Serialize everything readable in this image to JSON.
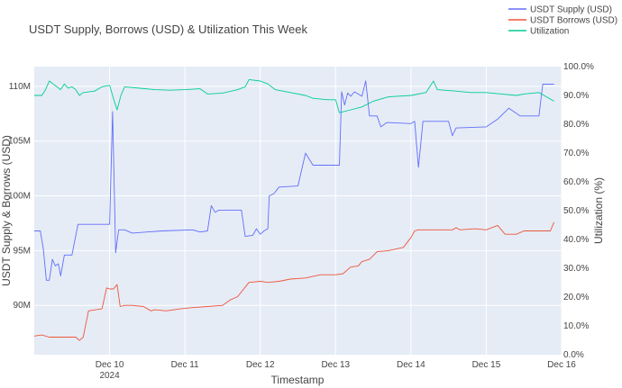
{
  "chart_data": {
    "type": "line",
    "title": "USDT Supply, Borrows (USD) & Utilization This Week",
    "xlabel": "Timestamp",
    "ylabel": "USDT Supply & Borrows (USD)",
    "y2label": "Utilization (%)",
    "x_ticks": [
      {
        "value": 1.0,
        "label": "Dec 10",
        "sublabel": "2024"
      },
      {
        "value": 2.0,
        "label": "Dec 11",
        "sublabel": ""
      },
      {
        "value": 3.0,
        "label": "Dec 12",
        "sublabel": ""
      },
      {
        "value": 4.0,
        "label": "Dec 13",
        "sublabel": ""
      },
      {
        "value": 5.0,
        "label": "Dec 14",
        "sublabel": ""
      },
      {
        "value": 6.0,
        "label": "Dec 15",
        "sublabel": ""
      },
      {
        "value": 7.0,
        "label": "Dec 16",
        "sublabel": ""
      }
    ],
    "xlim": [
      0.0,
      7.0
    ],
    "ylim": [
      85500000,
      111800000
    ],
    "y_ticks": [
      {
        "value": 90000000,
        "label": "90M"
      },
      {
        "value": 95000000,
        "label": "95M"
      },
      {
        "value": 100000000,
        "label": "100M"
      },
      {
        "value": 105000000,
        "label": "105M"
      },
      {
        "value": 110000000,
        "label": "110M"
      }
    ],
    "y2lim": [
      0,
      100
    ],
    "y2_ticks": [
      {
        "value": 0,
        "label": "0.0%"
      },
      {
        "value": 10,
        "label": "10.0%"
      },
      {
        "value": 20,
        "label": "20.0%"
      },
      {
        "value": 30,
        "label": "30.0%"
      },
      {
        "value": 40,
        "label": "40.0%"
      },
      {
        "value": 50,
        "label": "50.0%"
      },
      {
        "value": 60,
        "label": "60.0%"
      },
      {
        "value": 70,
        "label": "70.0%"
      },
      {
        "value": 80,
        "label": "80.0%"
      },
      {
        "value": 90,
        "label": "90.0%"
      },
      {
        "value": 100,
        "label": "100.0%"
      }
    ],
    "grid": true,
    "legend_position": "top-right",
    "series": [
      {
        "name": "USDT Supply (USD)",
        "color": "#636efa",
        "axis": "y",
        "points": [
          [
            0.0,
            96.8
          ],
          [
            0.08,
            96.8
          ],
          [
            0.12,
            95.2
          ],
          [
            0.16,
            92.3
          ],
          [
            0.2,
            92.3
          ],
          [
            0.24,
            94.2
          ],
          [
            0.28,
            93.6
          ],
          [
            0.32,
            93.8
          ],
          [
            0.35,
            92.7
          ],
          [
            0.4,
            94.6
          ],
          [
            0.5,
            94.6
          ],
          [
            0.58,
            97.4
          ],
          [
            1.0,
            97.4
          ],
          [
            1.04,
            107.7
          ],
          [
            1.08,
            94.8
          ],
          [
            1.12,
            96.9
          ],
          [
            1.2,
            96.9
          ],
          [
            1.3,
            96.6
          ],
          [
            1.5,
            96.7
          ],
          [
            1.7,
            96.8
          ],
          [
            2.1,
            96.9
          ],
          [
            2.2,
            96.7
          ],
          [
            2.3,
            96.8
          ],
          [
            2.35,
            99.1
          ],
          [
            2.4,
            98.5
          ],
          [
            2.45,
            98.7
          ],
          [
            2.75,
            98.7
          ],
          [
            2.8,
            96.3
          ],
          [
            2.9,
            96.4
          ],
          [
            2.95,
            97.0
          ],
          [
            3.0,
            96.5
          ],
          [
            3.05,
            96.8
          ],
          [
            3.1,
            97.0
          ],
          [
            3.12,
            100.0
          ],
          [
            3.18,
            100.2
          ],
          [
            3.25,
            100.8
          ],
          [
            3.5,
            100.9
          ],
          [
            3.6,
            103.9
          ],
          [
            3.7,
            102.8
          ],
          [
            4.05,
            102.8
          ],
          [
            4.08,
            109.5
          ],
          [
            4.12,
            108.3
          ],
          [
            4.16,
            109.4
          ],
          [
            4.2,
            109.1
          ],
          [
            4.25,
            109.5
          ],
          [
            4.35,
            109.1
          ],
          [
            4.4,
            110.5
          ],
          [
            4.45,
            107.3
          ],
          [
            4.55,
            107.3
          ],
          [
            4.6,
            106.3
          ],
          [
            4.68,
            106.7
          ],
          [
            5.0,
            106.6
          ],
          [
            5.05,
            106.8
          ],
          [
            5.1,
            102.6
          ],
          [
            5.16,
            106.8
          ],
          [
            5.5,
            106.8
          ],
          [
            5.55,
            105.5
          ],
          [
            5.6,
            106.2
          ],
          [
            6.0,
            106.3
          ],
          [
            6.15,
            107.0
          ],
          [
            6.3,
            108.0
          ],
          [
            6.45,
            107.3
          ],
          [
            6.7,
            107.3
          ],
          [
            6.75,
            110.2
          ],
          [
            6.9,
            110.2
          ]
        ]
      },
      {
        "name": "USDT Borrows (USD)",
        "color": "#ef553b",
        "axis": "y",
        "points": [
          [
            0.0,
            87.2
          ],
          [
            0.1,
            87.3
          ],
          [
            0.2,
            87.1
          ],
          [
            0.55,
            87.1
          ],
          [
            0.6,
            86.8
          ],
          [
            0.65,
            87.1
          ],
          [
            0.72,
            89.5
          ],
          [
            0.9,
            89.7
          ],
          [
            0.96,
            91.6
          ],
          [
            1.0,
            91.5
          ],
          [
            1.05,
            91.5
          ],
          [
            1.1,
            91.9
          ],
          [
            1.14,
            89.9
          ],
          [
            1.2,
            90.0
          ],
          [
            1.3,
            90.0
          ],
          [
            1.45,
            89.9
          ],
          [
            1.55,
            89.5
          ],
          [
            1.6,
            89.6
          ],
          [
            1.75,
            89.5
          ],
          [
            1.95,
            89.7
          ],
          [
            2.1,
            89.8
          ],
          [
            2.3,
            89.9
          ],
          [
            2.5,
            90.0
          ],
          [
            2.6,
            90.5
          ],
          [
            2.7,
            90.8
          ],
          [
            2.85,
            92.1
          ],
          [
            3.0,
            92.2
          ],
          [
            3.1,
            92.1
          ],
          [
            3.25,
            92.2
          ],
          [
            3.4,
            92.4
          ],
          [
            3.6,
            92.5
          ],
          [
            3.8,
            92.8
          ],
          [
            4.0,
            92.8
          ],
          [
            4.1,
            92.9
          ],
          [
            4.2,
            93.5
          ],
          [
            4.3,
            93.6
          ],
          [
            4.35,
            94.0
          ],
          [
            4.45,
            94.2
          ],
          [
            4.55,
            94.9
          ],
          [
            4.7,
            95.0
          ],
          [
            4.9,
            95.3
          ],
          [
            5.0,
            96.2
          ],
          [
            5.05,
            96.8
          ],
          [
            5.1,
            96.9
          ],
          [
            5.3,
            96.9
          ],
          [
            5.55,
            96.9
          ],
          [
            5.6,
            97.1
          ],
          [
            5.65,
            96.9
          ],
          [
            5.85,
            97.0
          ],
          [
            6.0,
            96.9
          ],
          [
            6.15,
            97.3
          ],
          [
            6.25,
            96.5
          ],
          [
            6.4,
            96.5
          ],
          [
            6.5,
            96.8
          ],
          [
            6.85,
            96.8
          ],
          [
            6.9,
            97.6
          ]
        ]
      },
      {
        "name": "Utilization",
        "color": "#00cc96",
        "axis": "y2",
        "points": [
          [
            0.0,
            90.0
          ],
          [
            0.1,
            90.0
          ],
          [
            0.15,
            92.0
          ],
          [
            0.2,
            95.0
          ],
          [
            0.25,
            94.0
          ],
          [
            0.3,
            93.0
          ],
          [
            0.35,
            92.0
          ],
          [
            0.4,
            94.0
          ],
          [
            0.45,
            92.5
          ],
          [
            0.5,
            93.0
          ],
          [
            0.55,
            92.0
          ],
          [
            0.6,
            90.0
          ],
          [
            0.65,
            91.0
          ],
          [
            0.8,
            91.5
          ],
          [
            0.9,
            93.0
          ],
          [
            1.0,
            93.5
          ],
          [
            1.05,
            89.0
          ],
          [
            1.1,
            85.0
          ],
          [
            1.15,
            90.0
          ],
          [
            1.2,
            93.0
          ],
          [
            1.4,
            92.5
          ],
          [
            1.6,
            92.0
          ],
          [
            1.8,
            91.8
          ],
          [
            2.0,
            92.0
          ],
          [
            2.2,
            92.3
          ],
          [
            2.3,
            90.5
          ],
          [
            2.5,
            90.8
          ],
          [
            2.7,
            92.0
          ],
          [
            2.8,
            93.0
          ],
          [
            2.85,
            95.5
          ],
          [
            3.0,
            95.0
          ],
          [
            3.1,
            94.0
          ],
          [
            3.2,
            92.0
          ],
          [
            3.4,
            91.0
          ],
          [
            3.6,
            90.0
          ],
          [
            3.7,
            89.0
          ],
          [
            3.9,
            88.5
          ],
          [
            4.0,
            88.5
          ],
          [
            4.05,
            84.0
          ],
          [
            4.2,
            85.0
          ],
          [
            4.35,
            86.0
          ],
          [
            4.5,
            88.0
          ],
          [
            4.7,
            89.5
          ],
          [
            5.0,
            90.0
          ],
          [
            5.2,
            91.0
          ],
          [
            5.3,
            95.0
          ],
          [
            5.35,
            92.0
          ],
          [
            5.6,
            91.5
          ],
          [
            5.8,
            91.0
          ],
          [
            6.0,
            91.0
          ],
          [
            6.2,
            90.5
          ],
          [
            6.4,
            90.0
          ],
          [
            6.5,
            90.5
          ],
          [
            6.7,
            91.0
          ],
          [
            6.9,
            88.0
          ]
        ]
      }
    ]
  }
}
